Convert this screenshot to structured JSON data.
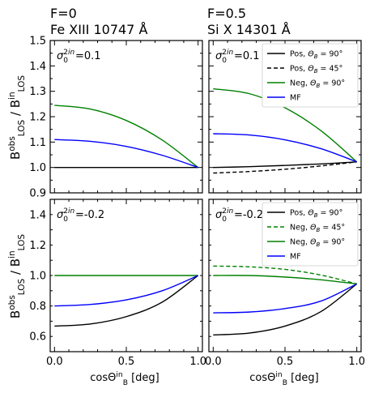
{
  "figure": {
    "col_titles": [
      {
        "line1": "F=0",
        "line2": "Fe XIII 10747 Å"
      },
      {
        "line1": "F=0.5",
        "line2": "Si X 14301 Å"
      }
    ],
    "ylabel": "B^obs_LOS / B^in_LOS",
    "xlabel": "cosΘ^in_B [deg]"
  },
  "chart_data": [
    {
      "type": "line",
      "panel": "top-left",
      "annotation": "σ0^2in=0.1",
      "xlim": [
        -0.03,
        1.03
      ],
      "ylim": [
        0.9,
        1.5
      ],
      "xticks": [
        "0.0",
        "0.5",
        "1.0"
      ],
      "yticks": [
        "0.9",
        "1.0",
        "1.1",
        "1.2",
        "1.3",
        "1.4",
        "1.5"
      ],
      "legend": null,
      "series": [
        {
          "color": "#000000",
          "dash": false,
          "x": [
            0,
            0.25,
            0.5,
            0.75,
            1.0
          ],
          "values": [
            1.0,
            1.0,
            1.0,
            1.0,
            1.0
          ]
        },
        {
          "color": "#008000",
          "dash": false,
          "x": [
            0,
            0.25,
            0.5,
            0.75,
            1.0
          ],
          "values": [
            1.245,
            1.23,
            1.185,
            1.108,
            1.0
          ]
        },
        {
          "color": "#0000ff",
          "dash": false,
          "x": [
            0,
            0.25,
            0.5,
            0.75,
            1.0
          ],
          "values": [
            1.11,
            1.103,
            1.083,
            1.048,
            1.0
          ]
        }
      ]
    },
    {
      "type": "line",
      "panel": "top-right",
      "annotation": "σ0^2in=0.1",
      "xlim": [
        -0.03,
        1.03
      ],
      "ylim": [
        0.9,
        1.5
      ],
      "xticks": [
        "0.0",
        "0.5",
        "1.0"
      ],
      "yticks": [],
      "legend": "top-right",
      "series": [
        {
          "name": "Pos, ΘB = 90°",
          "color": "#000000",
          "dash": false,
          "x": [
            0,
            0.25,
            0.5,
            0.75,
            1.0
          ],
          "values": [
            1.0,
            1.003,
            1.008,
            1.014,
            1.022
          ]
        },
        {
          "name": "Pos, ΘB = 45°",
          "color": "#000000",
          "dash": true,
          "x": [
            0,
            0.25,
            0.5,
            0.75,
            1.0
          ],
          "values": [
            0.978,
            0.984,
            0.993,
            1.006,
            1.022
          ]
        },
        {
          "name": "Neg, ΘB = 90°",
          "color": "#008000",
          "dash": false,
          "x": [
            0,
            0.25,
            0.5,
            0.75,
            1.0
          ],
          "values": [
            1.31,
            1.291,
            1.235,
            1.145,
            1.022
          ]
        },
        {
          "name": "MF",
          "color": "#0000ff",
          "dash": false,
          "x": [
            0,
            0.25,
            0.5,
            0.75,
            1.0
          ],
          "values": [
            1.133,
            1.128,
            1.109,
            1.074,
            1.022
          ]
        }
      ]
    },
    {
      "type": "line",
      "panel": "bottom-left",
      "annotation": "σ0^2in=-0.2",
      "xlim": [
        -0.03,
        1.03
      ],
      "ylim": [
        0.5,
        1.5
      ],
      "xticks": [
        "0.0",
        "0.5",
        "1.0"
      ],
      "yticks": [
        "0.6",
        "0.8",
        "1.0",
        "1.2",
        "1.4"
      ],
      "legend": null,
      "series": [
        {
          "color": "#000000",
          "dash": false,
          "x": [
            0,
            0.25,
            0.5,
            0.75,
            1.0
          ],
          "values": [
            0.668,
            0.682,
            0.73,
            0.825,
            1.0
          ]
        },
        {
          "color": "#008000",
          "dash": false,
          "x": [
            0,
            0.25,
            0.5,
            0.75,
            1.0
          ],
          "values": [
            1.0,
            1.0,
            1.0,
            1.0,
            1.0
          ]
        },
        {
          "color": "#0000ff",
          "dash": false,
          "x": [
            0,
            0.25,
            0.5,
            0.75,
            1.0
          ],
          "values": [
            0.8,
            0.81,
            0.84,
            0.9,
            1.0
          ]
        }
      ]
    },
    {
      "type": "line",
      "panel": "bottom-right",
      "annotation": "σ0^2in=-0.2",
      "xlim": [
        -0.03,
        1.03
      ],
      "ylim": [
        0.5,
        1.5
      ],
      "xticks": [
        "0.0",
        "0.5",
        "1.0"
      ],
      "yticks": [],
      "legend": "top-right",
      "series": [
        {
          "name": "Pos, ΘB = 90°",
          "color": "#000000",
          "dash": false,
          "x": [
            0,
            0.25,
            0.5,
            0.75,
            1.0
          ],
          "values": [
            0.61,
            0.622,
            0.668,
            0.763,
            0.945
          ]
        },
        {
          "name": "Neg, ΘB = 45°",
          "color": "#008000",
          "dash": true,
          "x": [
            0,
            0.25,
            0.5,
            0.75,
            1.0
          ],
          "values": [
            1.062,
            1.057,
            1.04,
            1.003,
            0.945
          ]
        },
        {
          "name": "Neg, ΘB = 90°",
          "color": "#008000",
          "dash": false,
          "x": [
            0,
            0.25,
            0.5,
            0.75,
            1.0
          ],
          "values": [
            1.0,
            1.0,
            0.99,
            0.972,
            0.945
          ]
        },
        {
          "name": "MF",
          "color": "#0000ff",
          "dash": false,
          "x": [
            0,
            0.25,
            0.5,
            0.75,
            1.0
          ],
          "values": [
            0.755,
            0.76,
            0.783,
            0.832,
            0.945
          ]
        }
      ]
    }
  ]
}
